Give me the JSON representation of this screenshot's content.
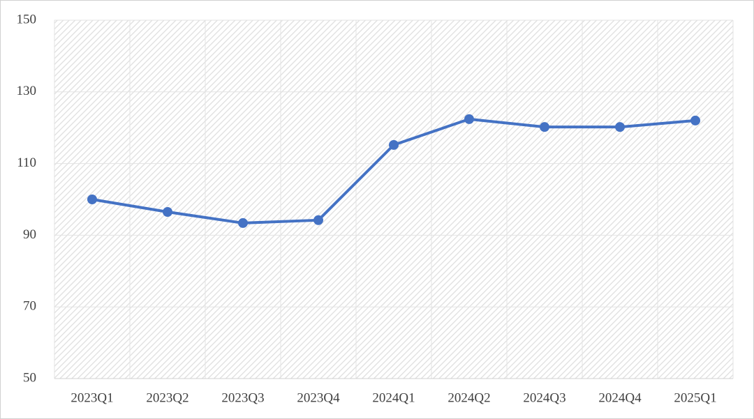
{
  "chart_data": {
    "type": "line",
    "categories": [
      "2023Q1",
      "2023Q2",
      "2023Q3",
      "2023Q4",
      "2024Q1",
      "2024Q2",
      "2024Q3",
      "2024Q4",
      "2025Q1"
    ],
    "values": [
      100,
      96.5,
      93.4,
      94.2,
      115.2,
      122.4,
      120.2,
      120.2,
      122.0
    ],
    "color": "#4472c4",
    "ylim": [
      50,
      150
    ],
    "yticks": [
      50,
      70,
      90,
      110,
      130,
      150
    ],
    "grid": true
  }
}
